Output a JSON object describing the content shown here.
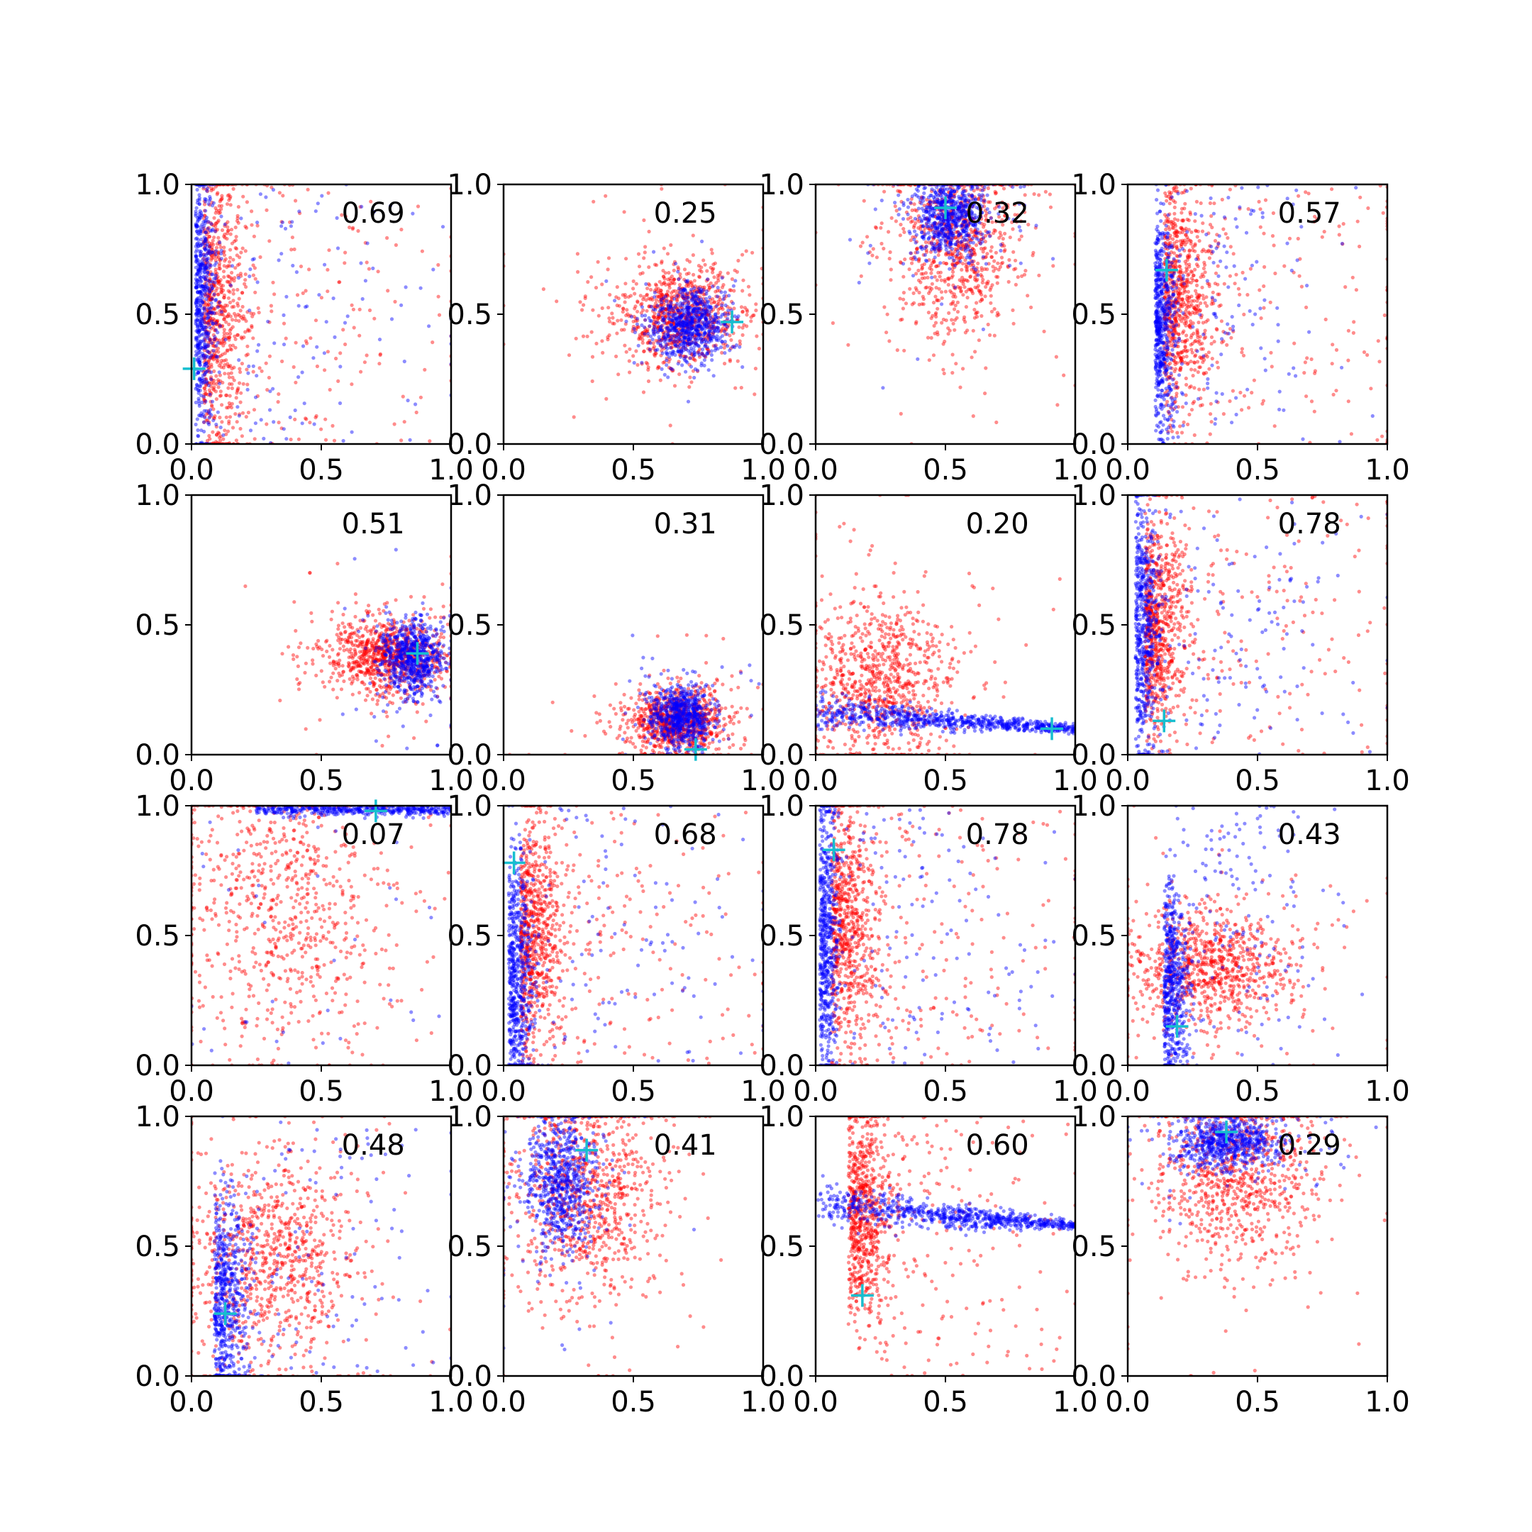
{
  "chart_data": {
    "type": "scatter",
    "layout": "4x4 grid of subplots",
    "axes": {
      "xlim": [
        0,
        1
      ],
      "ylim": [
        0,
        1
      ],
      "xticks": [
        "0.0",
        "0.5",
        "1.0"
      ],
      "yticks": [
        "0.0",
        "0.5",
        "1.0"
      ],
      "grid": false
    },
    "colors": {
      "series_a": "#ff0000",
      "series_b": "#0000ff",
      "marker": "#17becf"
    },
    "marker_symbol": "+",
    "panels": [
      {
        "label": "0.69",
        "marker": [
          0.01,
          0.29
        ],
        "blue": {
          "shape": "column",
          "cx": 0.04,
          "cy": 0.55,
          "sx": 0.04,
          "sy": 0.28,
          "n": 700,
          "tailx": 0.35
        },
        "red": {
          "shape": "column",
          "cx": 0.1,
          "cy": 0.5,
          "sx": 0.09,
          "sy": 0.3,
          "n": 900,
          "tailx": 0.4
        }
      },
      {
        "label": "0.25",
        "marker": [
          0.88,
          0.47
        ],
        "blue": {
          "shape": "blob",
          "cx": 0.72,
          "cy": 0.46,
          "sx": 0.07,
          "sy": 0.07,
          "n": 700
        },
        "red": {
          "shape": "blob",
          "cx": 0.68,
          "cy": 0.5,
          "sx": 0.12,
          "sy": 0.1,
          "n": 900
        }
      },
      {
        "label": "0.32",
        "marker": [
          0.5,
          0.91
        ],
        "blue": {
          "shape": "blob",
          "cx": 0.52,
          "cy": 0.88,
          "sx": 0.07,
          "sy": 0.08,
          "n": 700
        },
        "red": {
          "shape": "blob",
          "cx": 0.55,
          "cy": 0.78,
          "sx": 0.12,
          "sy": 0.18,
          "n": 900
        }
      },
      {
        "label": "0.57",
        "marker": [
          0.15,
          0.67
        ],
        "blue": {
          "shape": "column",
          "cx": 0.13,
          "cy": 0.45,
          "sx": 0.04,
          "sy": 0.22,
          "n": 700,
          "tailx": 0.2
        },
        "red": {
          "shape": "column",
          "cx": 0.2,
          "cy": 0.55,
          "sx": 0.1,
          "sy": 0.22,
          "n": 900,
          "tailx": 0.4
        }
      },
      {
        "label": "0.51",
        "marker": [
          0.87,
          0.39
        ],
        "blue": {
          "shape": "blob",
          "cx": 0.85,
          "cy": 0.37,
          "sx": 0.06,
          "sy": 0.07,
          "n": 700
        },
        "red": {
          "shape": "blob",
          "cx": 0.75,
          "cy": 0.38,
          "sx": 0.12,
          "sy": 0.07,
          "n": 900
        }
      },
      {
        "label": "0.31",
        "marker": [
          0.74,
          0.02
        ],
        "blue": {
          "shape": "blob",
          "cx": 0.68,
          "cy": 0.15,
          "sx": 0.06,
          "sy": 0.06,
          "n": 700
        },
        "red": {
          "shape": "blob",
          "cx": 0.66,
          "cy": 0.13,
          "sx": 0.1,
          "sy": 0.06,
          "n": 900
        }
      },
      {
        "label": "0.20",
        "marker": [
          0.91,
          0.1
        ],
        "blue": {
          "shape": "band",
          "y0": 0.16,
          "y1": 0.1,
          "sy": 0.025,
          "n": 700
        },
        "red": {
          "shape": "blob",
          "cx": 0.25,
          "cy": 0.28,
          "sx": 0.14,
          "sy": 0.16,
          "n": 900
        }
      },
      {
        "label": "0.78",
        "marker": [
          0.14,
          0.13
        ],
        "blue": {
          "shape": "column",
          "cx": 0.06,
          "cy": 0.5,
          "sx": 0.05,
          "sy": 0.27,
          "n": 700,
          "tailx": 0.3
        },
        "red": {
          "shape": "column",
          "cx": 0.12,
          "cy": 0.5,
          "sx": 0.09,
          "sy": 0.22,
          "n": 900,
          "tailx": 0.4
        }
      },
      {
        "label": "0.07",
        "marker": [
          0.71,
          0.98
        ],
        "blue": {
          "shape": "topband",
          "n": 500
        },
        "red": {
          "shape": "blob",
          "cx": 0.35,
          "cy": 0.6,
          "sx": 0.22,
          "sy": 0.28,
          "n": 800
        }
      },
      {
        "label": "0.68",
        "marker": [
          0.04,
          0.78
        ],
        "blue": {
          "shape": "column",
          "cx": 0.05,
          "cy": 0.35,
          "sx": 0.05,
          "sy": 0.25,
          "n": 700,
          "tailx": 0.35
        },
        "red": {
          "shape": "column",
          "cx": 0.12,
          "cy": 0.5,
          "sx": 0.09,
          "sy": 0.25,
          "n": 900,
          "tailx": 0.4
        }
      },
      {
        "label": "0.78",
        "marker": [
          0.07,
          0.83
        ],
        "blue": {
          "shape": "column",
          "cx": 0.04,
          "cy": 0.5,
          "sx": 0.04,
          "sy": 0.28,
          "n": 700,
          "tailx": 0.35
        },
        "red": {
          "shape": "column",
          "cx": 0.12,
          "cy": 0.55,
          "sx": 0.1,
          "sy": 0.25,
          "n": 900,
          "tailx": 0.4
        }
      },
      {
        "label": "0.43",
        "marker": [
          0.19,
          0.15
        ],
        "blue": {
          "shape": "column",
          "cx": 0.17,
          "cy": 0.3,
          "sx": 0.05,
          "sy": 0.2,
          "n": 700,
          "tailx": 0.2
        },
        "red": {
          "shape": "blob",
          "cx": 0.32,
          "cy": 0.38,
          "sx": 0.16,
          "sy": 0.12,
          "n": 900
        }
      },
      {
        "label": "0.48",
        "marker": [
          0.13,
          0.24
        ],
        "blue": {
          "shape": "column",
          "cx": 0.13,
          "cy": 0.3,
          "sx": 0.07,
          "sy": 0.22,
          "n": 700,
          "tailx": 0.3
        },
        "red": {
          "shape": "blob",
          "cx": 0.3,
          "cy": 0.45,
          "sx": 0.17,
          "sy": 0.2,
          "n": 900
        }
      },
      {
        "label": "0.41",
        "marker": [
          0.32,
          0.87
        ],
        "blue": {
          "shape": "blob",
          "cx": 0.22,
          "cy": 0.75,
          "sx": 0.07,
          "sy": 0.13,
          "n": 700
        },
        "red": {
          "shape": "blob",
          "cx": 0.32,
          "cy": 0.7,
          "sx": 0.14,
          "sy": 0.22,
          "n": 900
        }
      },
      {
        "label": "0.60",
        "marker": [
          0.18,
          0.31
        ],
        "blue": {
          "shape": "band",
          "y0": 0.66,
          "y1": 0.58,
          "sy": 0.03,
          "n": 700
        },
        "red": {
          "shape": "column",
          "cx": 0.18,
          "cy": 0.62,
          "sx": 0.09,
          "sy": 0.22,
          "n": 900,
          "tailx": 0.3
        }
      },
      {
        "label": "0.29",
        "marker": [
          0.38,
          0.94
        ],
        "blue": {
          "shape": "blob",
          "cx": 0.38,
          "cy": 0.9,
          "sx": 0.1,
          "sy": 0.05,
          "n": 700
        },
        "red": {
          "shape": "blob",
          "cx": 0.4,
          "cy": 0.78,
          "sx": 0.16,
          "sy": 0.18,
          "n": 900
        }
      }
    ]
  }
}
